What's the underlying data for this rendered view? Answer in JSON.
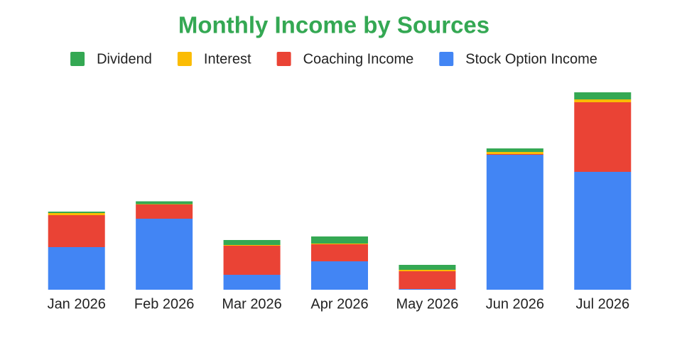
{
  "chart_data": {
    "type": "stacked-bar",
    "title": "Monthly Income by Sources",
    "categories": [
      "Jan 2026",
      "Feb 2026",
      "Mar 2026",
      "Apr 2026",
      "May 2026",
      "Jun 2026",
      "Jul 2026"
    ],
    "series": [
      {
        "name": "Dividend",
        "color": "#34a853",
        "values": [
          2,
          4,
          7,
          10,
          7,
          5,
          10
        ]
      },
      {
        "name": "Interest",
        "color": "#fbbc04",
        "values": [
          3,
          0.5,
          1,
          1,
          2,
          3,
          4
        ]
      },
      {
        "name": "Coaching Income",
        "color": "#ea4335",
        "values": [
          45,
          20,
          41,
          24,
          25,
          1,
          98
        ]
      },
      {
        "name": "Stock Option Income",
        "color": "#4285f4",
        "values": [
          60,
          100,
          21,
          40,
          1,
          190,
          166
        ]
      }
    ],
    "ylim": [
      0,
      300
    ]
  }
}
